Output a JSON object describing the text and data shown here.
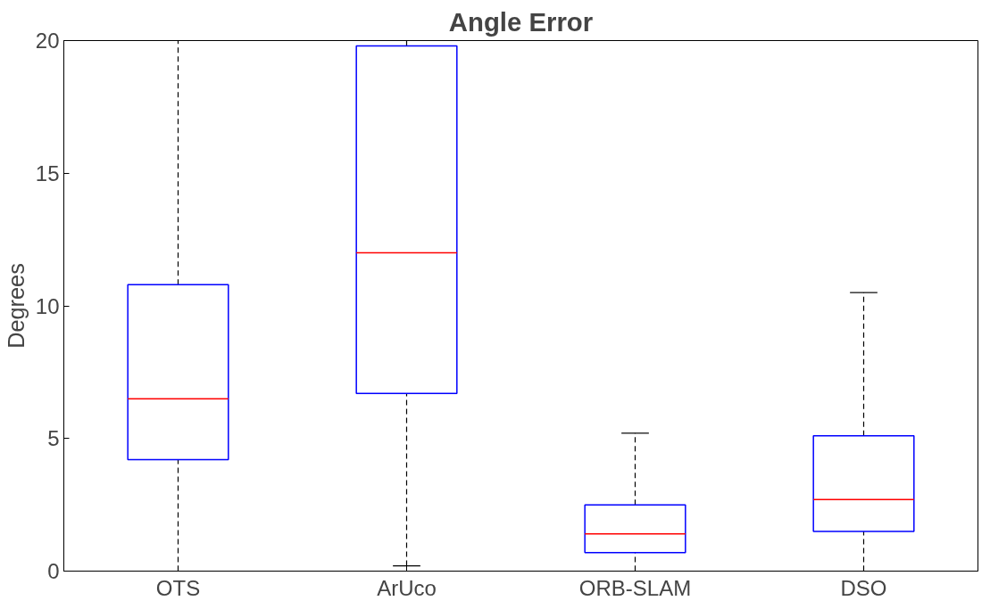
{
  "chart_data": {
    "type": "box",
    "title": "Angle Error",
    "ylabel": "Degrees",
    "categories": [
      "OTS",
      "ArUco",
      "ORB-SLAM",
      "DSO"
    ],
    "boxes": [
      {
        "low": 0,
        "q1": 4.2,
        "median": 6.5,
        "q3": 10.8,
        "high": 20
      },
      {
        "low": 0.2,
        "q1": 6.7,
        "median": 12,
        "q3": 19.8,
        "high": 20
      },
      {
        "low": 0,
        "q1": 0.7,
        "median": 1.4,
        "q3": 2.5,
        "high": 5.2
      },
      {
        "low": 0,
        "q1": 1.5,
        "median": 2.7,
        "q3": 5.1,
        "high": 10.5
      }
    ],
    "color": "#0000ff",
    "ylim": [
      0,
      20
    ],
    "yticks": [
      0,
      5,
      10,
      15,
      20
    ],
    "grid": false
  }
}
